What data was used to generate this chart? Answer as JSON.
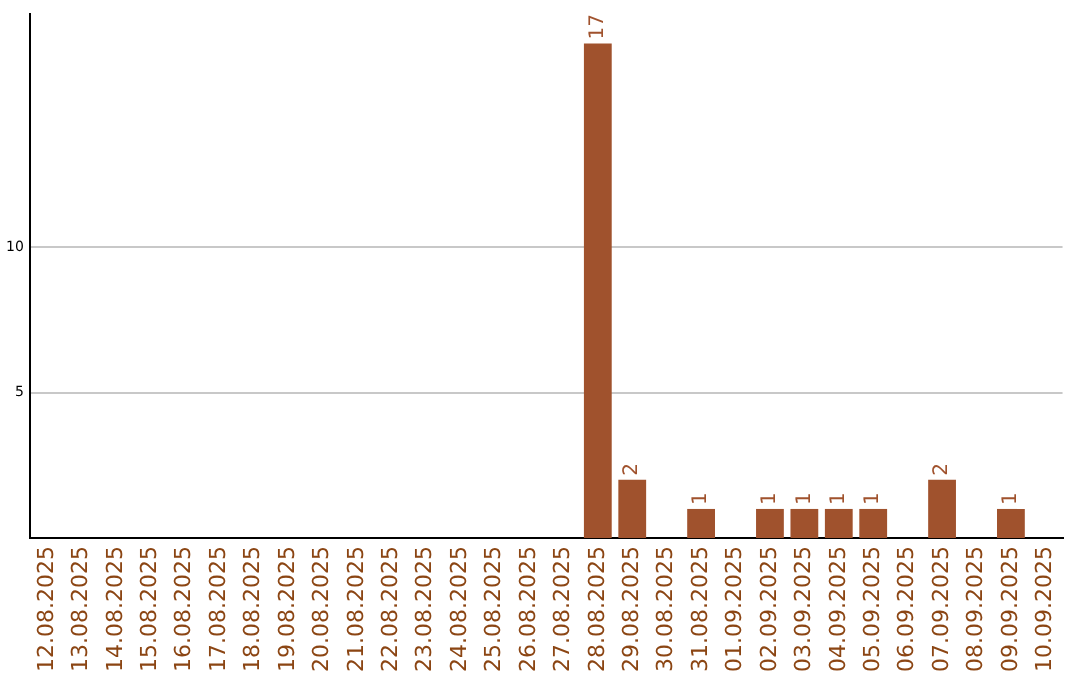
{
  "chart_data": {
    "type": "bar",
    "categories": [
      "12.08.2025",
      "13.08.2025",
      "14.08.2025",
      "15.08.2025",
      "16.08.2025",
      "17.08.2025",
      "18.08.2025",
      "19.08.2025",
      "20.08.2025",
      "21.08.2025",
      "22.08.2025",
      "23.08.2025",
      "24.08.2025",
      "25.08.2025",
      "26.08.2025",
      "27.08.2025",
      "28.08.2025",
      "29.08.2025",
      "30.08.2025",
      "31.08.2025",
      "01.09.2025",
      "02.09.2025",
      "03.09.2025",
      "04.09.2025",
      "05.09.2025",
      "06.09.2025",
      "07.09.2025",
      "08.09.2025",
      "09.09.2025",
      "10.09.2025"
    ],
    "values": [
      0,
      0,
      0,
      0,
      0,
      0,
      0,
      0,
      0,
      0,
      0,
      0,
      0,
      0,
      0,
      0,
      17,
      2,
      0,
      1,
      0,
      1,
      1,
      1,
      1,
      0,
      2,
      0,
      1,
      0
    ],
    "value_labels": [
      null,
      null,
      null,
      null,
      null,
      null,
      null,
      null,
      null,
      null,
      null,
      null,
      null,
      null,
      null,
      null,
      "17",
      "2",
      null,
      "1",
      null,
      "1",
      "1",
      "1",
      "1",
      null,
      "2",
      null,
      "1",
      null
    ],
    "color": "#a0522d",
    "ylim": [
      0,
      18
    ],
    "yticks": [
      5,
      10
    ],
    "grid": "y",
    "legend": false
  }
}
